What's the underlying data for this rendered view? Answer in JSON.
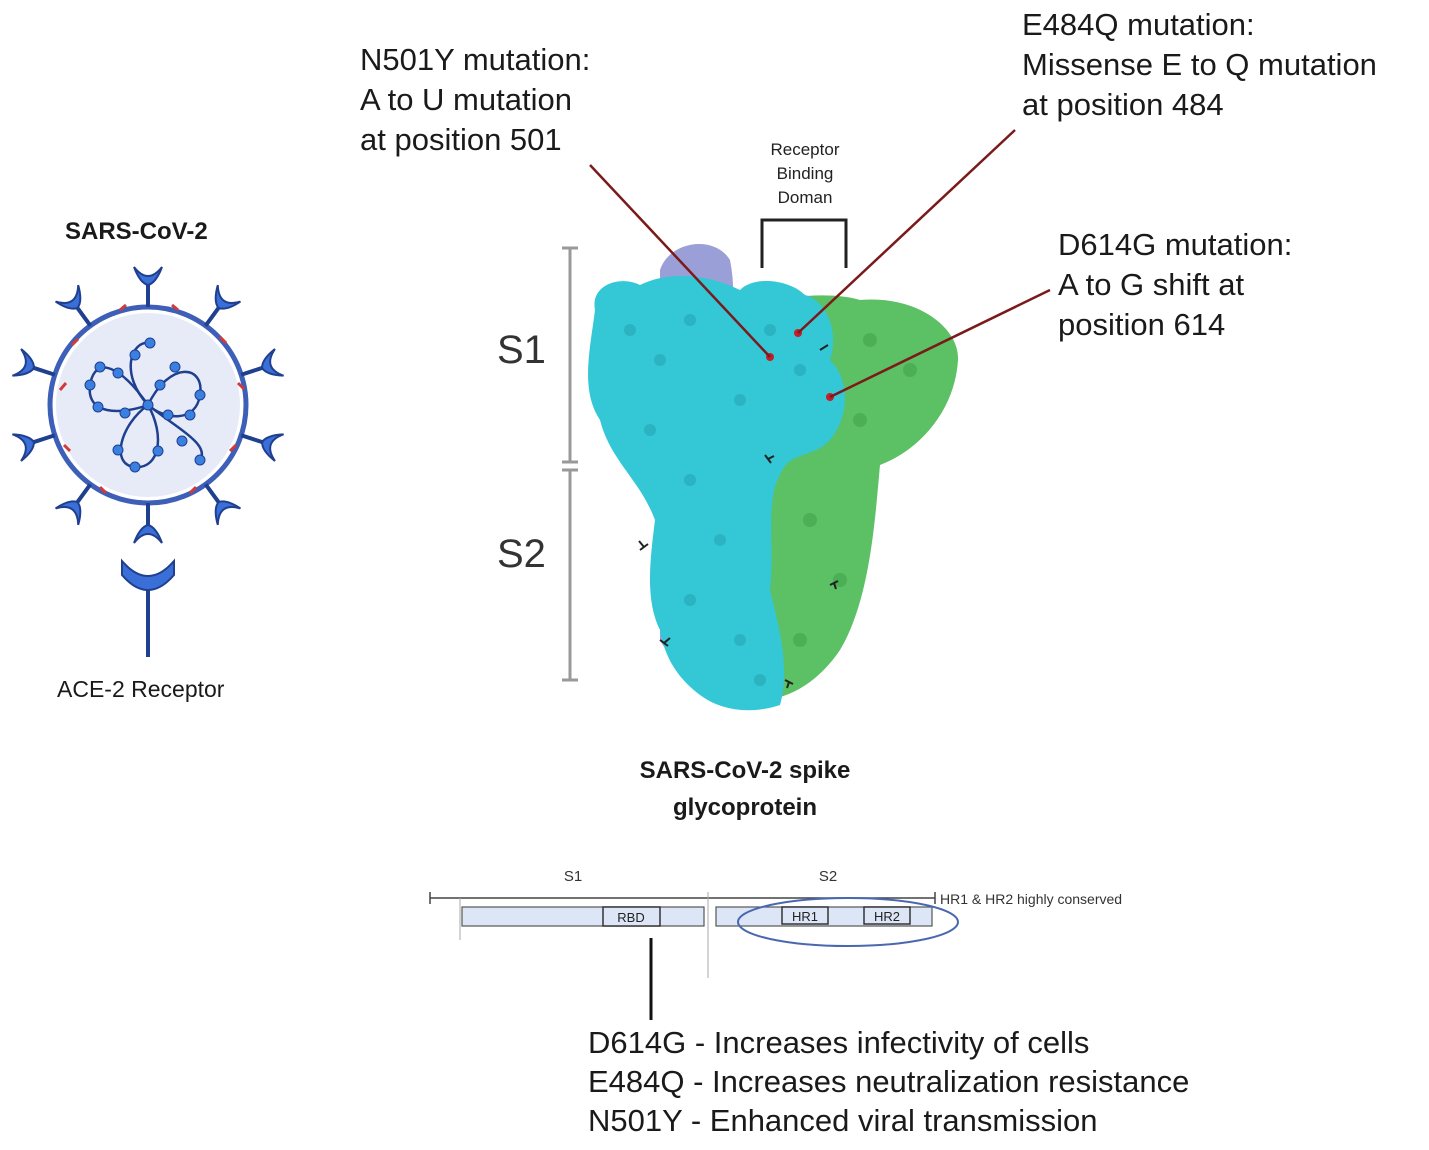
{
  "virus": {
    "title": "SARS-CoV-2",
    "receptor_label": "ACE-2 Receptor"
  },
  "spike": {
    "caption_line1": "SARS-CoV-2 spike",
    "caption_line2": "glycoprotein",
    "segment_s1": "S1",
    "segment_s2": "S2",
    "rbd_label_line1": "Receptor",
    "rbd_label_line2": "Binding",
    "rbd_label_line3": "Doman"
  },
  "mutations": {
    "n501y": {
      "line1": "N501Y mutation:",
      "line2": "A to U mutation",
      "line3": "at position 501"
    },
    "e484q": {
      "line1": "E484Q mutation:",
      "line2": "Missense E to Q mutation",
      "line3": "at position 484"
    },
    "d614g": {
      "line1": "D614G mutation:",
      "line2": "A to G shift at",
      "line3": "position 614"
    }
  },
  "domain_map": {
    "s1": "S1",
    "s2": "S2",
    "rbd": "RBD",
    "hr1": "HR1",
    "hr2": "HR2",
    "conserved_note": "HR1 & HR2 highly conserved"
  },
  "effects": [
    "D614G - Increases infectivity of cells",
    "E484Q - Increases neutralization resistance",
    "N501Y - Enhanced viral transmission"
  ],
  "colors": {
    "virus_blue": "#3a6fd8",
    "virus_dark": "#1f3f8f",
    "membrane": "#3e5fb8",
    "spike_cyan": "#34c7d6",
    "spike_green": "#5cc065",
    "spike_lavender": "#9a9fd8",
    "leader_line": "#7a1a1a",
    "domain_fill": "#dde6f7"
  }
}
